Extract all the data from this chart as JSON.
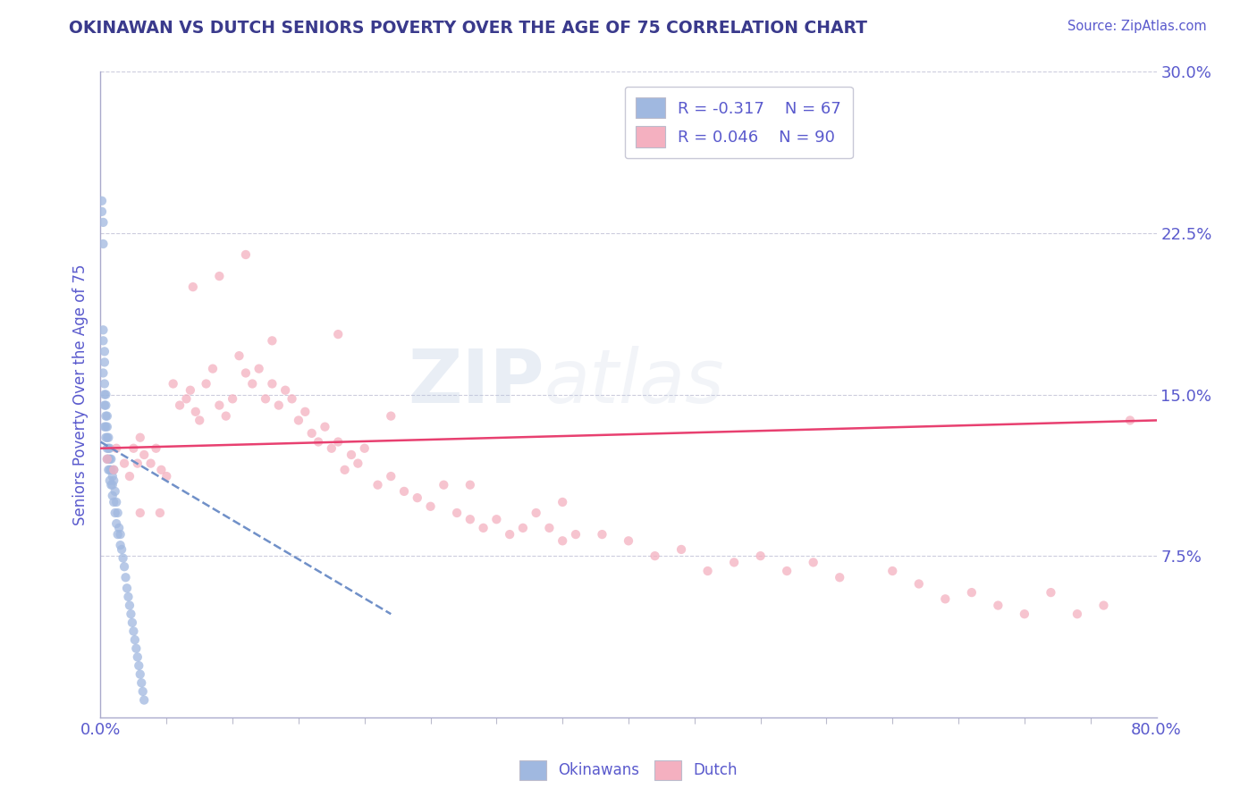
{
  "title": "OKINAWAN VS DUTCH SENIORS POVERTY OVER THE AGE OF 75 CORRELATION CHART",
  "source": "Source: ZipAtlas.com",
  "ylabel": "Seniors Poverty Over the Age of 75",
  "xlim": [
    0.0,
    0.8
  ],
  "ylim": [
    0.0,
    0.3
  ],
  "yticks": [
    0.0,
    0.075,
    0.15,
    0.225,
    0.3
  ],
  "ytick_labels": [
    "",
    "7.5%",
    "15.0%",
    "22.5%",
    "30.0%"
  ],
  "title_color": "#3a3a8c",
  "axis_color": "#5a5acd",
  "tick_color": "#5a5acd",
  "source_color": "#5a5acd",
  "okinawan_color": "#a0b8e0",
  "dutch_color": "#f4b0c0",
  "okinawan_line_color": "#7090c8",
  "dutch_line_color": "#e84070",
  "legend_R_okinawan": "R = -0.317",
  "legend_N_okinawan": "N = 67",
  "legend_R_dutch": "R = 0.046",
  "legend_N_dutch": "N = 90",
  "background_color": "#ffffff",
  "grid_color": "#ccccdd",
  "okinawan_x": [
    0.001,
    0.001,
    0.002,
    0.002,
    0.002,
    0.002,
    0.002,
    0.003,
    0.003,
    0.003,
    0.003,
    0.003,
    0.003,
    0.004,
    0.004,
    0.004,
    0.004,
    0.004,
    0.005,
    0.005,
    0.005,
    0.005,
    0.005,
    0.006,
    0.006,
    0.006,
    0.006,
    0.007,
    0.007,
    0.007,
    0.007,
    0.008,
    0.008,
    0.008,
    0.009,
    0.009,
    0.009,
    0.01,
    0.01,
    0.01,
    0.011,
    0.011,
    0.012,
    0.012,
    0.013,
    0.013,
    0.014,
    0.015,
    0.015,
    0.016,
    0.017,
    0.018,
    0.019,
    0.02,
    0.021,
    0.022,
    0.023,
    0.024,
    0.025,
    0.026,
    0.027,
    0.028,
    0.029,
    0.03,
    0.031,
    0.032,
    0.033
  ],
  "okinawan_y": [
    0.24,
    0.235,
    0.23,
    0.22,
    0.18,
    0.175,
    0.16,
    0.17,
    0.165,
    0.155,
    0.15,
    0.145,
    0.135,
    0.15,
    0.145,
    0.14,
    0.135,
    0.13,
    0.14,
    0.135,
    0.13,
    0.125,
    0.12,
    0.13,
    0.125,
    0.12,
    0.115,
    0.125,
    0.12,
    0.115,
    0.11,
    0.12,
    0.115,
    0.108,
    0.112,
    0.108,
    0.103,
    0.115,
    0.11,
    0.1,
    0.105,
    0.095,
    0.1,
    0.09,
    0.095,
    0.085,
    0.088,
    0.085,
    0.08,
    0.078,
    0.074,
    0.07,
    0.065,
    0.06,
    0.056,
    0.052,
    0.048,
    0.044,
    0.04,
    0.036,
    0.032,
    0.028,
    0.024,
    0.02,
    0.016,
    0.012,
    0.008
  ],
  "dutch_x": [
    0.005,
    0.01,
    0.012,
    0.018,
    0.022,
    0.025,
    0.028,
    0.03,
    0.033,
    0.038,
    0.042,
    0.046,
    0.05,
    0.055,
    0.06,
    0.065,
    0.068,
    0.072,
    0.075,
    0.08,
    0.085,
    0.09,
    0.095,
    0.1,
    0.105,
    0.11,
    0.115,
    0.12,
    0.125,
    0.13,
    0.135,
    0.14,
    0.145,
    0.15,
    0.155,
    0.16,
    0.165,
    0.17,
    0.175,
    0.18,
    0.185,
    0.19,
    0.195,
    0.2,
    0.21,
    0.22,
    0.23,
    0.24,
    0.25,
    0.26,
    0.27,
    0.28,
    0.29,
    0.3,
    0.31,
    0.32,
    0.33,
    0.34,
    0.35,
    0.36,
    0.38,
    0.4,
    0.42,
    0.44,
    0.46,
    0.48,
    0.5,
    0.52,
    0.54,
    0.56,
    0.6,
    0.62,
    0.64,
    0.66,
    0.68,
    0.7,
    0.72,
    0.74,
    0.76,
    0.78,
    0.03,
    0.045,
    0.07,
    0.09,
    0.11,
    0.13,
    0.18,
    0.22,
    0.28,
    0.35
  ],
  "dutch_y": [
    0.12,
    0.115,
    0.125,
    0.118,
    0.112,
    0.125,
    0.118,
    0.13,
    0.122,
    0.118,
    0.125,
    0.115,
    0.112,
    0.155,
    0.145,
    0.148,
    0.152,
    0.142,
    0.138,
    0.155,
    0.162,
    0.145,
    0.14,
    0.148,
    0.168,
    0.16,
    0.155,
    0.162,
    0.148,
    0.155,
    0.145,
    0.152,
    0.148,
    0.138,
    0.142,
    0.132,
    0.128,
    0.135,
    0.125,
    0.128,
    0.115,
    0.122,
    0.118,
    0.125,
    0.108,
    0.112,
    0.105,
    0.102,
    0.098,
    0.108,
    0.095,
    0.092,
    0.088,
    0.092,
    0.085,
    0.088,
    0.095,
    0.088,
    0.082,
    0.085,
    0.085,
    0.082,
    0.075,
    0.078,
    0.068,
    0.072,
    0.075,
    0.068,
    0.072,
    0.065,
    0.068,
    0.062,
    0.055,
    0.058,
    0.052,
    0.048,
    0.058,
    0.048,
    0.052,
    0.138,
    0.095,
    0.095,
    0.2,
    0.205,
    0.215,
    0.175,
    0.178,
    0.14,
    0.108,
    0.1
  ]
}
